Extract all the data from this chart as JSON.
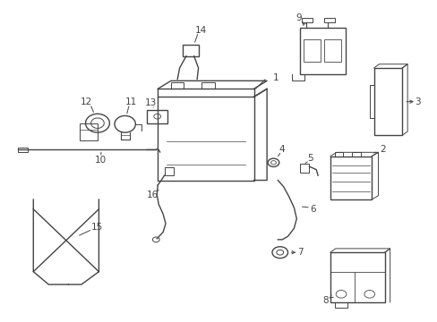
{
  "background_color": "#ffffff",
  "line_color": "#444444",
  "line_width": 1.0,
  "fig_width": 4.89,
  "fig_height": 3.6,
  "dpi": 100
}
